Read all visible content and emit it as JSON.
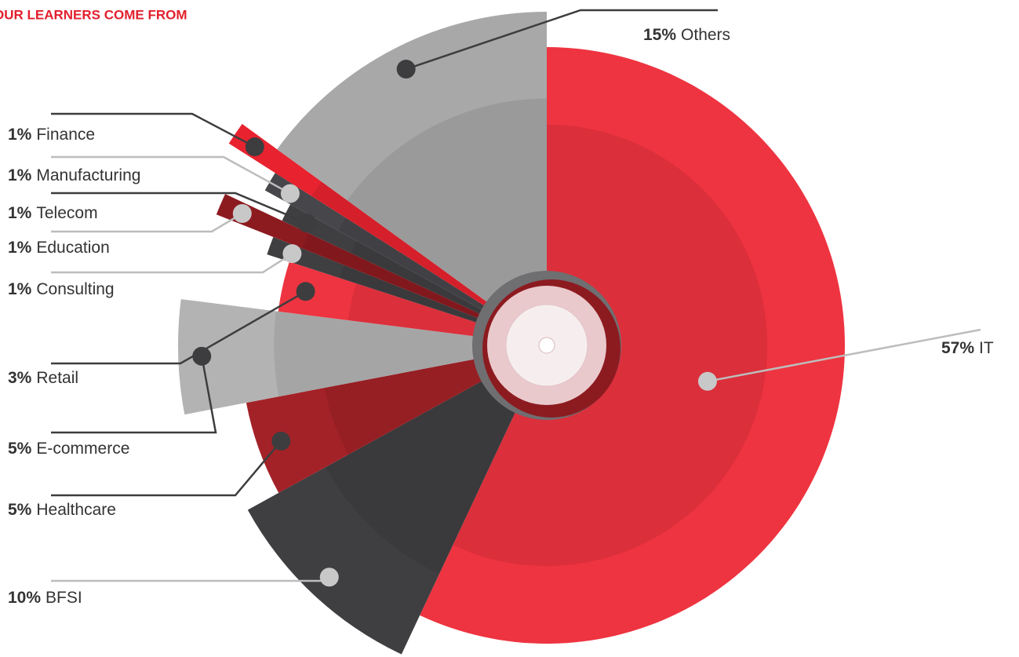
{
  "chart_data": {
    "type": "pie",
    "title": "OUR LEARNERS COME FROM",
    "categories": [
      "IT",
      "BFSI",
      "Healthcare",
      "E-commerce",
      "Retail",
      "Consulting",
      "Education",
      "Telecom",
      "Manufacturing",
      "Finance",
      "Others"
    ],
    "values": [
      57,
      10,
      5,
      5,
      3,
      1,
      1,
      1,
      1,
      1,
      15
    ],
    "value_labels": [
      "57%",
      "10%",
      "5%",
      "5%",
      "3%",
      "1%",
      "1%",
      "1%",
      "1%",
      "1%",
      "15%"
    ],
    "colors": [
      "#ee3440",
      "#3f3e40",
      "#a32228",
      "#b3b3b3",
      "#ee3440",
      "#3f3e40",
      "#8c1b20",
      "#3f3e40",
      "#47464a",
      "#e8232f",
      "#a9a8a8"
    ]
  }
}
